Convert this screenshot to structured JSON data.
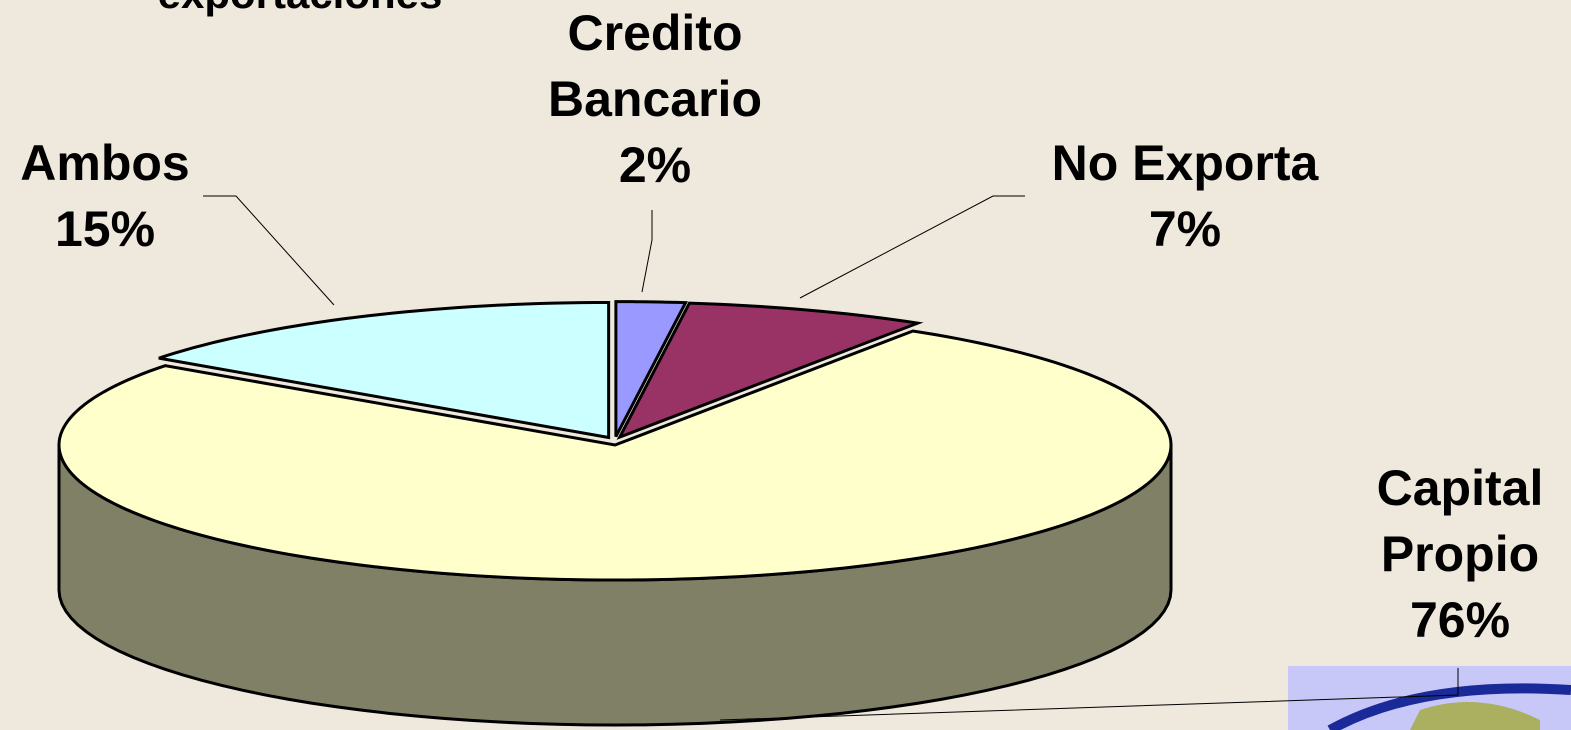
{
  "chart_data": {
    "type": "pie3d",
    "title": "exportaciones",
    "categories": [
      "Credito Bancario",
      "No Exporta",
      "Capital Propio",
      "Ambos"
    ],
    "values": [
      2,
      7,
      76,
      15
    ],
    "value_labels": [
      "2%",
      "7%",
      "76%",
      "15%"
    ],
    "colors": [
      "#9999ff",
      "#993366",
      "#ffffcc",
      "#ccffff"
    ]
  }
}
